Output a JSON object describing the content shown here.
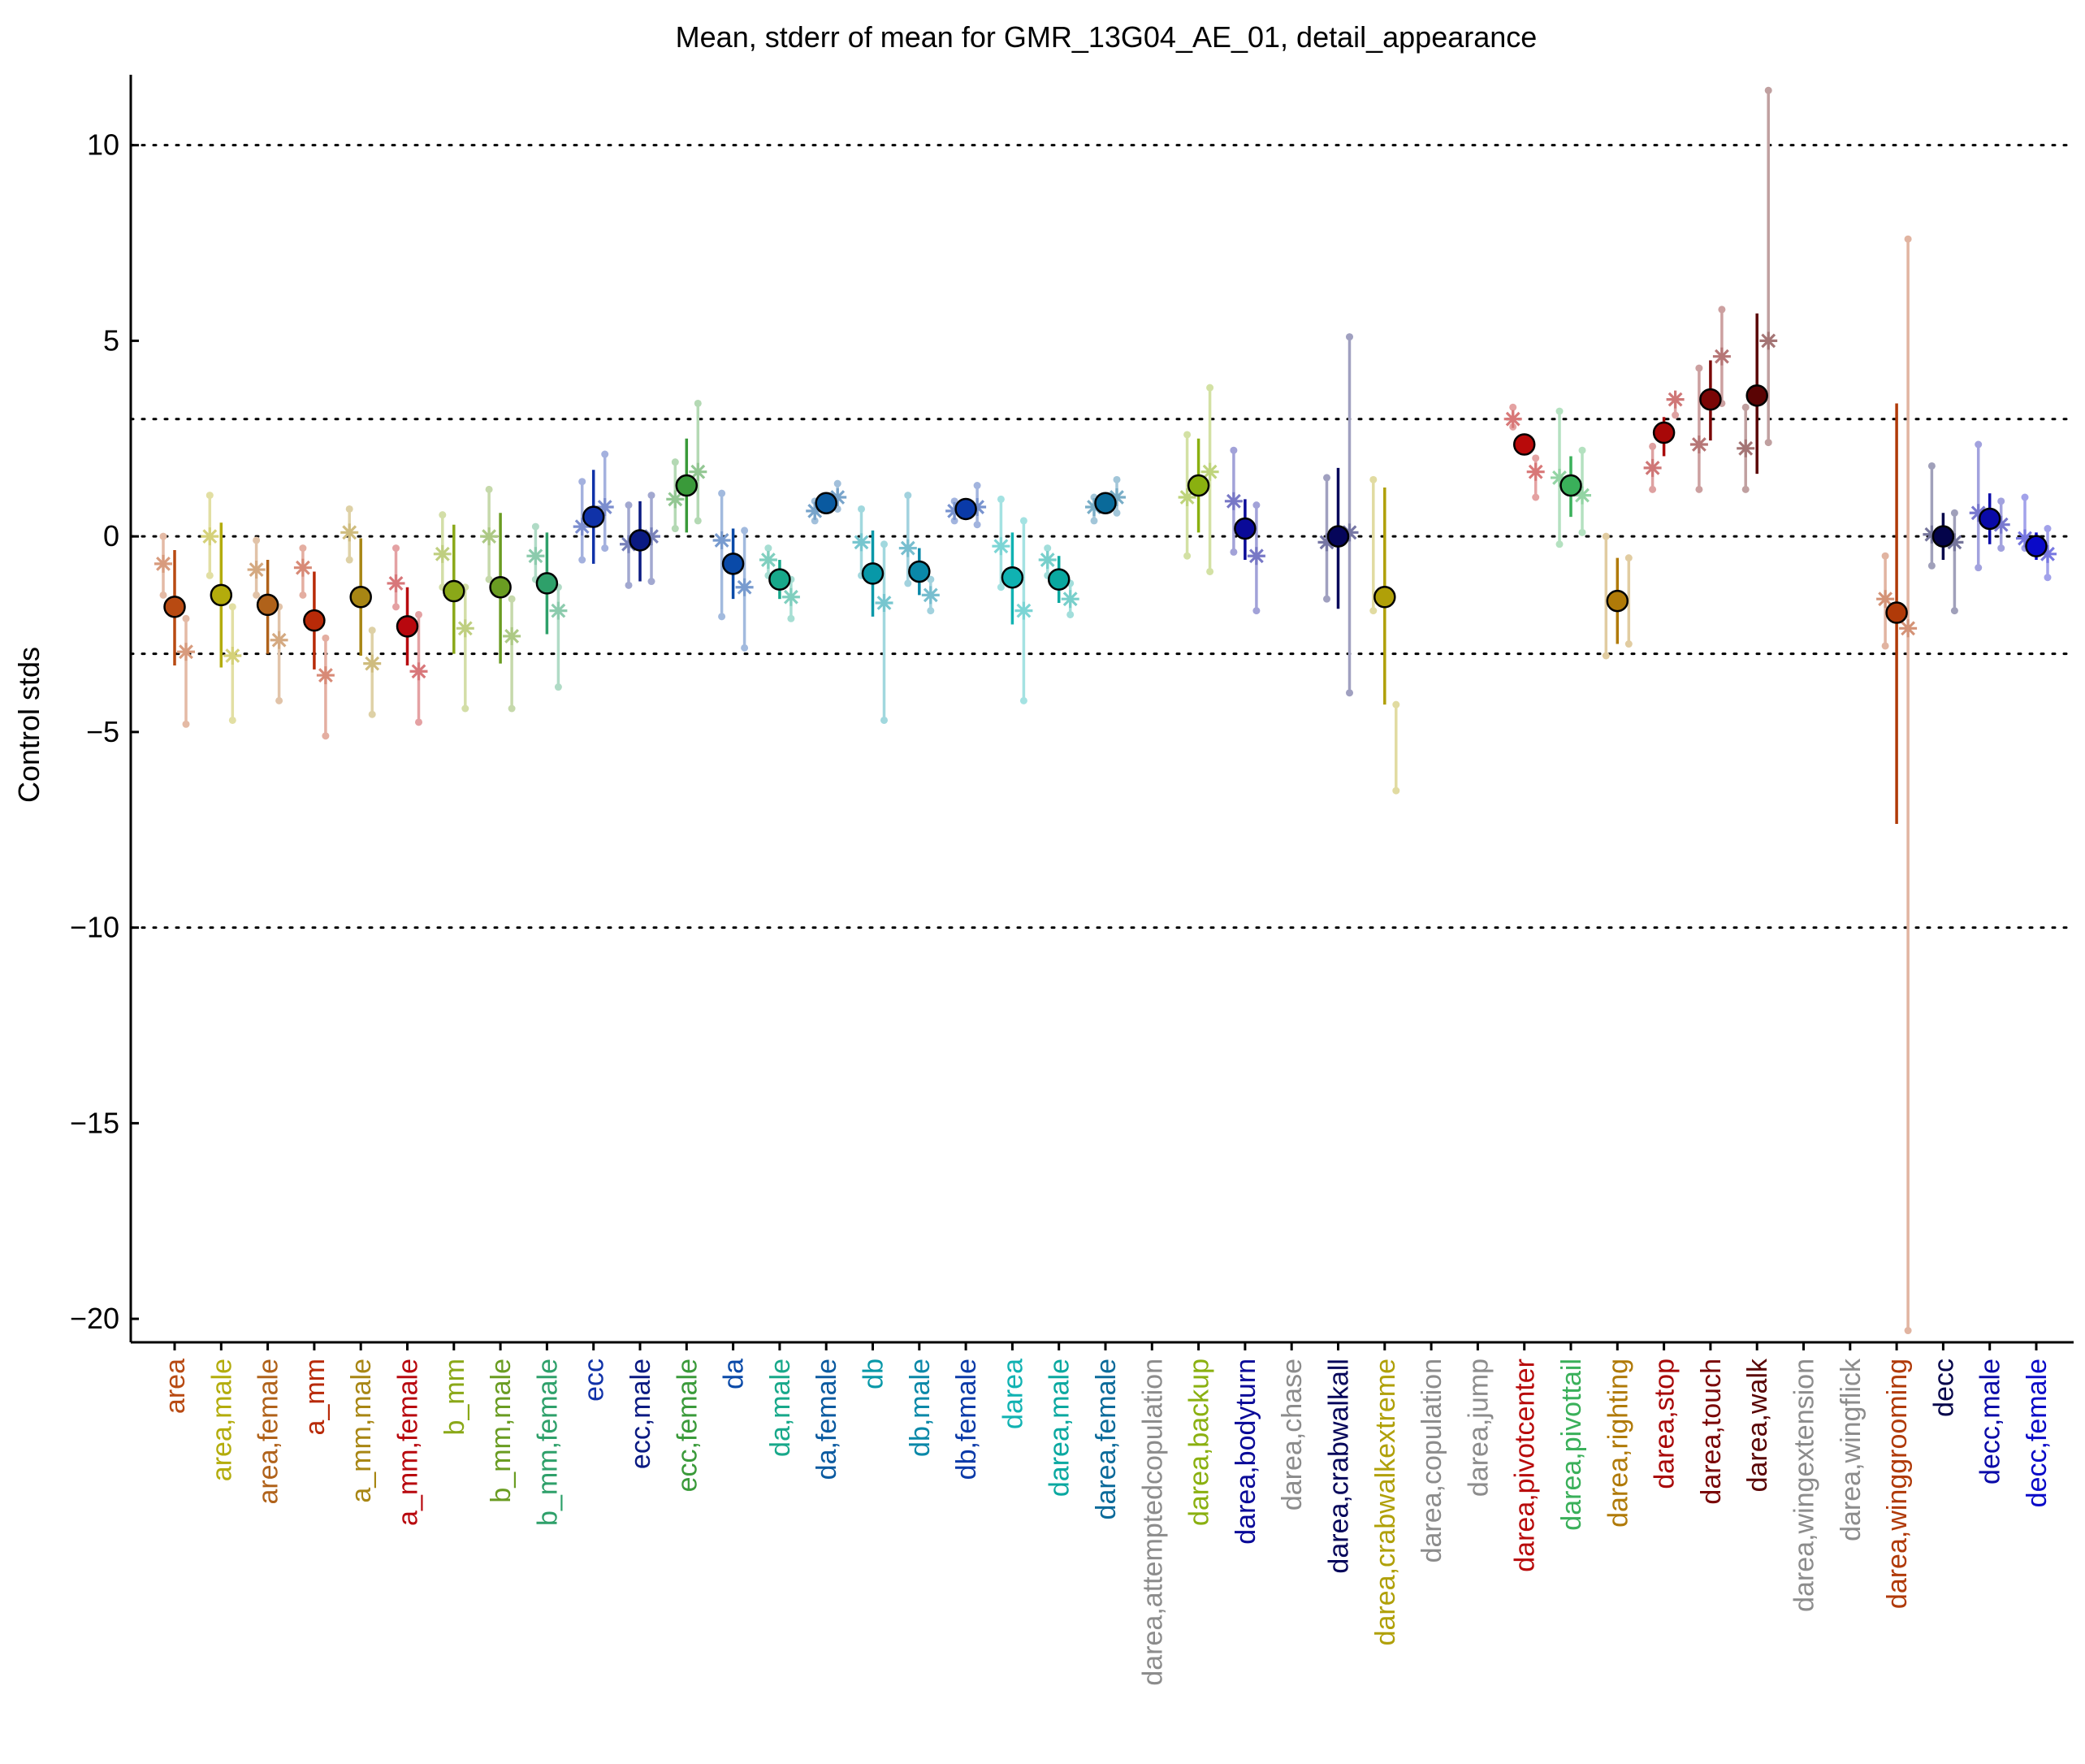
{
  "chart_data": {
    "type": "scatter",
    "title": "Mean, stderr of mean for GMR_13G04_AE_01, detail_appearance",
    "xlabel": "",
    "ylabel": "Control stds",
    "ylim": [
      -20.6,
      11.8
    ],
    "yticks": [
      -20,
      -15,
      -10,
      -5,
      0,
      5,
      10
    ],
    "ytick_labels": [
      "−20",
      "−15",
      "−10",
      "−5",
      "0",
      "5",
      "10"
    ],
    "reference_lines": [
      -10,
      -3,
      0,
      3,
      10
    ],
    "grid": false,
    "legend": "none",
    "categories": [
      {
        "label": "area",
        "color": "#b84a12",
        "mean": -1.8,
        "lo": -3.3,
        "hi": -0.35,
        "has_mean": true
      },
      {
        "label": "area,male",
        "color": "#b3ac0c",
        "mean": -1.5,
        "lo": -3.35,
        "hi": 0.35,
        "has_mean": true
      },
      {
        "label": "area,female",
        "color": "#b0621a",
        "mean": -1.75,
        "lo": -3.0,
        "hi": -0.6,
        "has_mean": true
      },
      {
        "label": "a_mm",
        "color": "#b82a08",
        "mean": -2.15,
        "lo": -3.4,
        "hi": -0.9,
        "has_mean": true
      },
      {
        "label": "a_mm,male",
        "color": "#a88614",
        "mean": -1.55,
        "lo": -3.05,
        "hi": -0.05,
        "has_mean": true
      },
      {
        "label": "a_mm,female",
        "color": "#b8080e",
        "mean": -2.3,
        "lo": -3.3,
        "hi": -1.3,
        "has_mean": true
      },
      {
        "label": "b_mm",
        "color": "#8aa818",
        "mean": -1.4,
        "lo": -3.0,
        "hi": 0.3,
        "has_mean": true
      },
      {
        "label": "b_mm,male",
        "color": "#6a9c22",
        "mean": -1.3,
        "lo": -3.25,
        "hi": 0.6,
        "has_mean": true
      },
      {
        "label": "b_mm,female",
        "color": "#2ea06a",
        "mean": -1.2,
        "lo": -2.5,
        "hi": 0.1,
        "has_mean": true
      },
      {
        "label": "ecc",
        "color": "#1032a8",
        "mean": 0.5,
        "lo": -0.7,
        "hi": 1.7,
        "has_mean": true
      },
      {
        "label": "ecc,male",
        "color": "#0a1a82",
        "mean": -0.1,
        "lo": -1.15,
        "hi": 0.9,
        "has_mean": true
      },
      {
        "label": "ecc,female",
        "color": "#3a9a3a",
        "mean": 1.3,
        "lo": 0.1,
        "hi": 2.5,
        "has_mean": true
      },
      {
        "label": "da",
        "color": "#0a4aa8",
        "mean": -0.7,
        "lo": -1.6,
        "hi": 0.2,
        "has_mean": true
      },
      {
        "label": "da,male",
        "color": "#18a88a",
        "mean": -1.1,
        "lo": -1.6,
        "hi": -0.6,
        "has_mean": true
      },
      {
        "label": "da,female",
        "color": "#0a5aa0",
        "mean": 0.85,
        "lo": 0.6,
        "hi": 1.1,
        "has_mean": true
      },
      {
        "label": "db",
        "color": "#0898a8",
        "mean": -0.95,
        "lo": -2.05,
        "hi": 0.15,
        "has_mean": true
      },
      {
        "label": "db,male",
        "color": "#0a88a8",
        "mean": -0.9,
        "lo": -1.5,
        "hi": -0.3,
        "has_mean": true
      },
      {
        "label": "db,female",
        "color": "#0a3aa8",
        "mean": 0.7,
        "lo": 0.5,
        "hi": 0.9,
        "has_mean": true
      },
      {
        "label": "darea",
        "color": "#10b2b2",
        "mean": -1.05,
        "lo": -2.25,
        "hi": 0.1,
        "has_mean": true
      },
      {
        "label": "darea,male",
        "color": "#0aa8a0",
        "mean": -1.1,
        "lo": -1.7,
        "hi": -0.5,
        "has_mean": true
      },
      {
        "label": "darea,female",
        "color": "#0a6a9a",
        "mean": 0.85,
        "lo": 0.6,
        "hi": 1.1,
        "has_mean": true
      },
      {
        "label": "darea,attemptedcopulation",
        "color": "#8c8c8c",
        "has_mean": false
      },
      {
        "label": "darea,backup",
        "color": "#8ab010",
        "mean": 1.3,
        "lo": 0.1,
        "hi": 2.5,
        "has_mean": true
      },
      {
        "label": "darea,bodyturn",
        "color": "#0a0a98",
        "mean": 0.2,
        "lo": -0.6,
        "hi": 0.95,
        "has_mean": true
      },
      {
        "label": "darea,chase",
        "color": "#8c8c8c",
        "has_mean": false
      },
      {
        "label": "darea,crabwalkall",
        "color": "#06065a",
        "mean": 0.0,
        "lo": -1.85,
        "hi": 1.75,
        "has_mean": true
      },
      {
        "label": "darea,crabwalkextreme",
        "color": "#b0a008",
        "mean": -1.55,
        "lo": -4.3,
        "hi": 1.25,
        "has_mean": true
      },
      {
        "label": "darea,copulation",
        "color": "#8c8c8c",
        "has_mean": false
      },
      {
        "label": "darea,jump",
        "color": "#8c8c8c",
        "has_mean": false
      },
      {
        "label": "darea,pivotcenter",
        "color": "#b80a0a",
        "mean": 2.35,
        "lo": 2.1,
        "hi": 2.6,
        "has_mean": true
      },
      {
        "label": "darea,pivottail",
        "color": "#3ab05a",
        "mean": 1.3,
        "lo": 0.5,
        "hi": 2.05,
        "has_mean": true
      },
      {
        "label": "darea,righting",
        "color": "#b07a08",
        "mean": -1.65,
        "lo": -2.75,
        "hi": -0.55,
        "has_mean": true
      },
      {
        "label": "darea,stop",
        "color": "#a80808",
        "mean": 2.65,
        "lo": 2.05,
        "hi": 3.05,
        "has_mean": true
      },
      {
        "label": "darea,touch",
        "color": "#7a0606",
        "mean": 3.5,
        "lo": 2.45,
        "hi": 4.5,
        "has_mean": true
      },
      {
        "label": "darea,walk",
        "color": "#5a0404",
        "mean": 3.6,
        "lo": 1.6,
        "hi": 5.7,
        "has_mean": true
      },
      {
        "label": "darea,wingextension",
        "color": "#8c8c8c",
        "has_mean": false
      },
      {
        "label": "darea,wingflick",
        "color": "#8c8c8c",
        "has_mean": false
      },
      {
        "label": "darea,winggrooming",
        "color": "#b03a08",
        "mean": -1.95,
        "lo": -7.35,
        "hi": 3.4,
        "has_mean": true
      },
      {
        "label": "decc",
        "color": "#04044a",
        "mean": 0.0,
        "lo": -0.6,
        "hi": 0.6,
        "has_mean": true
      },
      {
        "label": "decc,male",
        "color": "#0a0aa8",
        "mean": 0.45,
        "lo": -0.2,
        "hi": 1.1,
        "has_mean": true
      },
      {
        "label": "decc,female",
        "color": "#0a0ac8",
        "mean": -0.25,
        "lo": -0.6,
        "hi": 0.1,
        "has_mean": true
      }
    ],
    "subgroups": [
      {
        "i": 0,
        "star_l": -0.7,
        "star_r": -2.95,
        "lo_l": -1.5,
        "hi_l": 0.0,
        "lo_r": -4.8,
        "hi_r": -2.1
      },
      {
        "i": 1,
        "star_l": 0.0,
        "star_r": -3.05,
        "lo_l": -1.0,
        "hi_l": 1.05,
        "lo_r": -4.7,
        "hi_r": -1.8
      },
      {
        "i": 2,
        "star_l": -0.85,
        "star_r": -2.65,
        "lo_l": -1.5,
        "hi_l": -0.1,
        "lo_r": -4.2,
        "hi_r": -1.8
      },
      {
        "i": 3,
        "star_l": -0.8,
        "star_r": -3.55,
        "lo_l": -1.5,
        "hi_l": -0.3,
        "lo_r": -5.1,
        "hi_r": -2.6
      },
      {
        "i": 4,
        "star_l": 0.1,
        "star_r": -3.25,
        "lo_l": -0.6,
        "hi_l": 0.7,
        "lo_r": -4.55,
        "hi_r": -2.4
      },
      {
        "i": 5,
        "star_l": -1.2,
        "star_r": -3.45,
        "lo_l": -1.8,
        "hi_l": -0.3,
        "lo_r": -4.75,
        "hi_r": -2.0
      },
      {
        "i": 6,
        "star_l": -0.45,
        "star_r": -2.35,
        "lo_l": -1.3,
        "hi_l": 0.55,
        "lo_r": -4.4,
        "hi_r": -1.3
      },
      {
        "i": 7,
        "star_l": 0.0,
        "star_r": -2.55,
        "lo_l": -1.1,
        "hi_l": 1.2,
        "lo_r": -4.4,
        "hi_r": -1.6
      },
      {
        "i": 8,
        "star_l": -0.5,
        "star_r": -1.9,
        "lo_l": -1.1,
        "hi_l": 0.25,
        "lo_r": -3.85,
        "hi_r": -1.3
      },
      {
        "i": 9,
        "star_l": 0.25,
        "star_r": 0.75,
        "lo_l": -0.6,
        "hi_l": 1.4,
        "lo_r": -0.3,
        "hi_r": 2.1
      },
      {
        "i": 10,
        "star_l": -0.2,
        "star_r": 0.0,
        "lo_l": -1.25,
        "hi_l": 0.8,
        "lo_r": -1.15,
        "hi_r": 1.05
      },
      {
        "i": 11,
        "star_l": 0.95,
        "star_r": 1.65,
        "lo_l": 0.2,
        "hi_l": 1.9,
        "lo_r": 0.4,
        "hi_r": 3.4
      },
      {
        "i": 12,
        "star_l": -0.1,
        "star_r": -1.3,
        "lo_l": -2.05,
        "hi_l": 1.1,
        "lo_r": -2.85,
        "hi_r": 0.15
      },
      {
        "i": 13,
        "star_l": -0.6,
        "star_r": -1.55,
        "lo_l": -1.0,
        "hi_l": -0.3,
        "lo_r": -2.1,
        "hi_r": -1.1
      },
      {
        "i": 14,
        "star_l": 0.65,
        "star_r": 1.0,
        "lo_l": 0.4,
        "hi_l": 0.9,
        "lo_r": 0.7,
        "hi_r": 1.35
      },
      {
        "i": 15,
        "star_l": -0.15,
        "star_r": -1.7,
        "lo_l": -1.0,
        "hi_l": 0.7,
        "lo_r": -4.7,
        "hi_r": -0.2
      },
      {
        "i": 16,
        "star_l": -0.3,
        "star_r": -1.5,
        "lo_l": -1.2,
        "hi_l": 1.05,
        "lo_r": -1.9,
        "hi_r": -1.1
      },
      {
        "i": 17,
        "star_l": 0.65,
        "star_r": 0.75,
        "lo_l": 0.4,
        "hi_l": 0.9,
        "lo_r": 0.3,
        "hi_r": 1.3
      },
      {
        "i": 18,
        "star_l": -0.25,
        "star_r": -1.9,
        "lo_l": -1.3,
        "hi_l": 0.95,
        "lo_r": -4.2,
        "hi_r": 0.4
      },
      {
        "i": 19,
        "star_l": -0.6,
        "star_r": -1.6,
        "lo_l": -1.0,
        "hi_l": -0.3,
        "lo_r": -2.0,
        "hi_r": -1.2
      },
      {
        "i": 20,
        "star_l": 0.75,
        "star_r": 1.0,
        "lo_l": 0.4,
        "hi_l": 1.0,
        "lo_r": 0.6,
        "hi_r": 1.45
      },
      {
        "i": 22,
        "star_l": 1.0,
        "star_r": 1.65,
        "lo_l": -0.5,
        "hi_l": 2.6,
        "lo_r": -0.9,
        "hi_r": 3.8
      },
      {
        "i": 23,
        "star_l": 0.9,
        "star_r": -0.5,
        "lo_l": -0.4,
        "hi_l": 2.2,
        "lo_r": -1.9,
        "hi_r": 0.8
      },
      {
        "i": 25,
        "star_l": -0.15,
        "star_r": 0.1,
        "lo_l": -1.6,
        "hi_l": 1.5,
        "lo_r": -4.0,
        "hi_r": 5.1
      },
      {
        "i": 26,
        "star_l": null,
        "star_r": null,
        "lo_l": -1.9,
        "hi_l": 1.45,
        "lo_r": -6.5,
        "hi_r": -4.3
      },
      {
        "i": 29,
        "star_l": 3.0,
        "star_r": 1.65,
        "lo_l": 2.8,
        "hi_l": 3.3,
        "lo_r": 1.0,
        "hi_r": 2.0
      },
      {
        "i": 30,
        "star_l": 1.5,
        "star_r": 1.05,
        "lo_l": -0.2,
        "hi_l": 3.2,
        "lo_r": 0.1,
        "hi_r": 2.2
      },
      {
        "i": 31,
        "star_l": null,
        "star_r": null,
        "lo_l": -3.05,
        "hi_l": 0.0,
        "lo_r": -2.75,
        "hi_r": -0.55
      },
      {
        "i": 32,
        "star_l": 1.75,
        "star_r": 3.5,
        "lo_l": 1.2,
        "hi_l": 2.3,
        "lo_r": 3.1,
        "hi_r": 3.5
      },
      {
        "i": 33,
        "star_l": 2.35,
        "star_r": 4.6,
        "lo_l": 1.2,
        "hi_l": 4.3,
        "lo_r": 3.4,
        "hi_r": 5.8
      },
      {
        "i": 34,
        "star_l": 2.25,
        "star_r": 5.0,
        "lo_l": 1.2,
        "hi_l": 3.3,
        "lo_r": 2.4,
        "hi_r": 11.4
      },
      {
        "i": 37,
        "star_l": -1.6,
        "star_r": -2.35,
        "lo_l": -2.8,
        "hi_l": -0.5,
        "lo_r": -20.3,
        "hi_r": 7.6
      },
      {
        "i": 38,
        "star_l": 0.05,
        "star_r": -0.15,
        "lo_l": -0.75,
        "hi_l": 1.8,
        "lo_r": -1.9,
        "hi_r": 0.6
      },
      {
        "i": 39,
        "star_l": 0.6,
        "star_r": 0.3,
        "lo_l": -0.8,
        "hi_l": 2.35,
        "lo_r": -0.3,
        "hi_r": 0.9
      },
      {
        "i": 40,
        "star_l": -0.05,
        "star_r": -0.45,
        "lo_l": -0.3,
        "hi_l": 1.0,
        "lo_r": -1.05,
        "hi_r": 0.2
      }
    ]
  }
}
